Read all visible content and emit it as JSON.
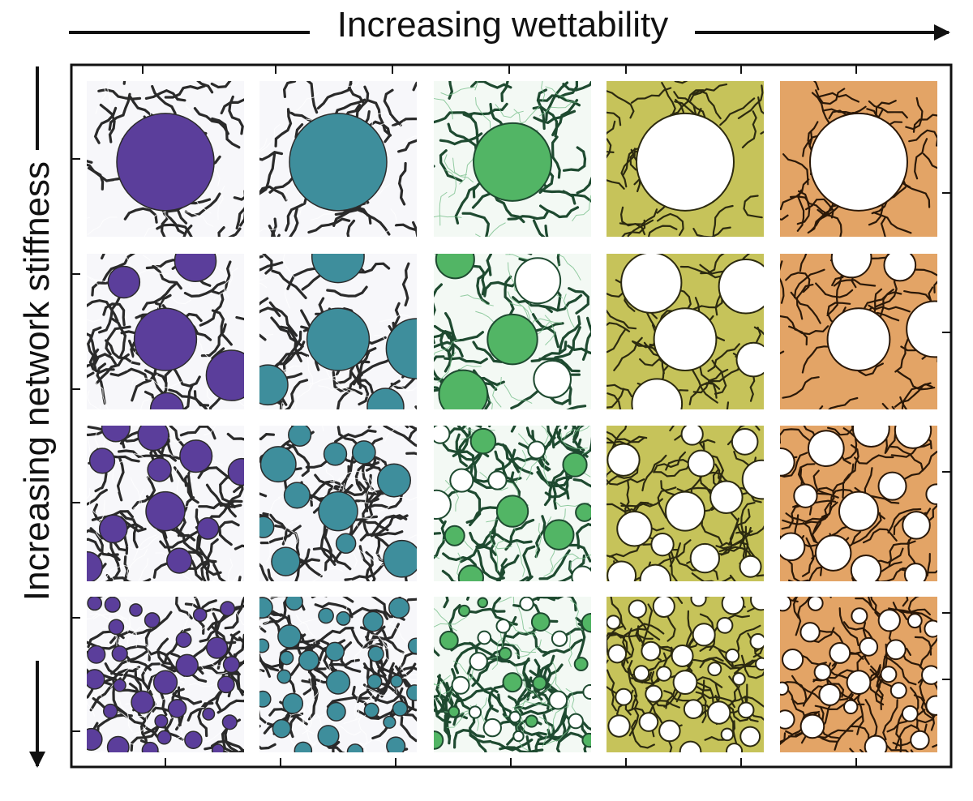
{
  "figure": {
    "x_axis_label": "Increasing wettability",
    "y_axis_label": "Increasing network stiffness"
  },
  "grid": {
    "rows": 4,
    "columns": 5,
    "column_colors": [
      "#5b3e9b",
      "#3e8e9c",
      "#52b565",
      "#c6c35a",
      "#e3a466"
    ],
    "network_colors": [
      "#2a2a2a",
      "#2a2a2a",
      "#1e4a30",
      "#2c2a10",
      "#2a1808"
    ],
    "row_droplet_counts": [
      1,
      5,
      14,
      34
    ]
  },
  "colors": {
    "axis": "#111111",
    "background": "#ffffff"
  }
}
